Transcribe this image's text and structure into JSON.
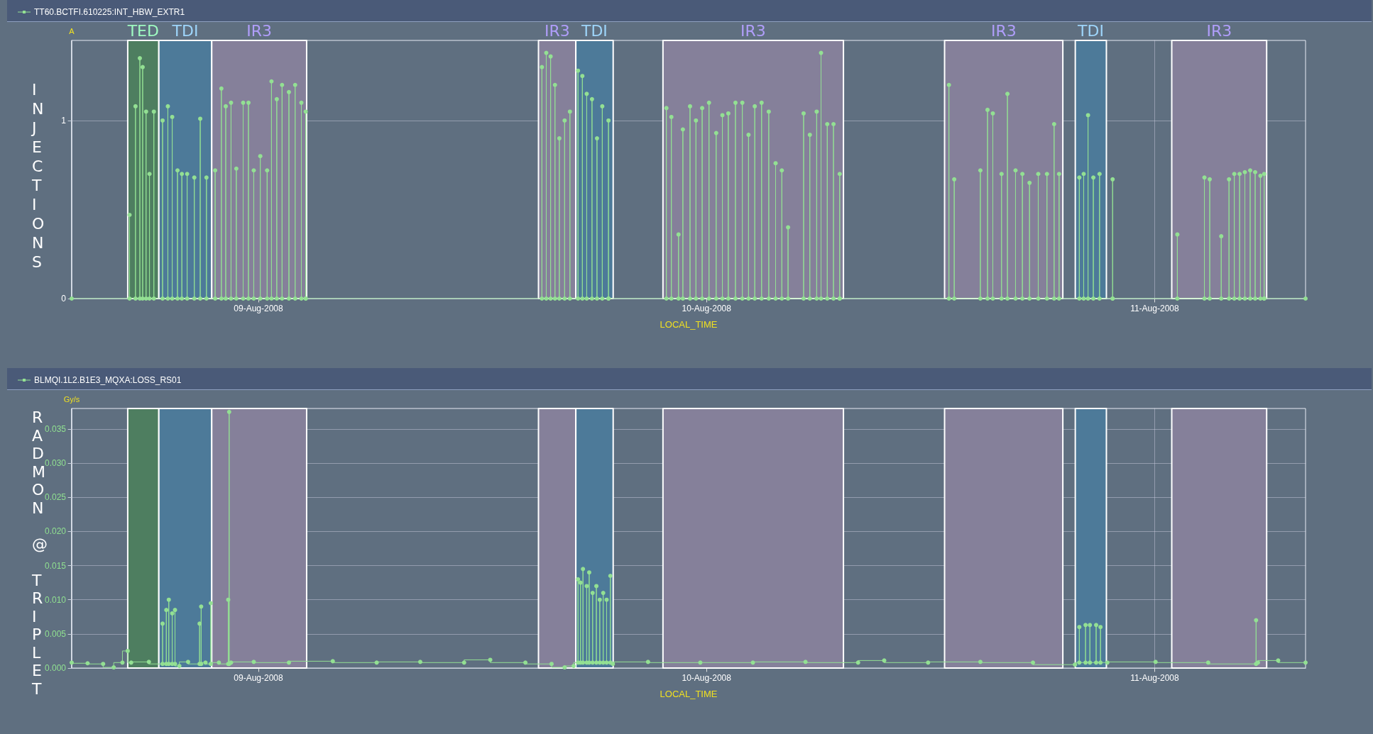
{
  "chart_data": [
    {
      "type": "step",
      "title": "INJECTIONS",
      "ylabel": "A",
      "xlabel": "LOCAL_TIME",
      "legend": "top left",
      "grid": true,
      "marker": "circle",
      "line_style": "solid",
      "xlim": [
        "2008-08-08T14:00",
        "2008-08-11T08:05"
      ],
      "xticks": [
        {
          "value": "2008-08-09",
          "label": "09-Aug-2008"
        },
        {
          "value": "2008-08-10",
          "label": "10-Aug-2008"
        },
        {
          "value": "2008-08-11",
          "label": "11-Aug-2008"
        }
      ],
      "ylim": [
        0,
        1.45
      ],
      "yticks": [
        0,
        1
      ],
      "bands": [
        {
          "axis": "x",
          "from": "2008-08-08T17:00",
          "to": "2008-08-08T18:40",
          "label": "TED",
          "color": "#4e7e60"
        },
        {
          "axis": "x",
          "from": "2008-08-08T18:40",
          "to": "2008-08-08T21:30",
          "label": "TDI",
          "color": "#4d7a99"
        },
        {
          "axis": "x",
          "from": "2008-08-08T21:30",
          "to": "2008-08-09T02:35",
          "label": "IR3",
          "color": "#85809a"
        },
        {
          "axis": "x",
          "from": "2008-08-09T15:00",
          "to": "2008-08-09T17:00",
          "label": "IR3",
          "color": "#85809a"
        },
        {
          "axis": "x",
          "from": "2008-08-09T17:00",
          "to": "2008-08-09T19:00",
          "label": "TDI",
          "color": "#4d7a99"
        },
        {
          "axis": "x",
          "from": "2008-08-09T21:40",
          "to": "2008-08-10T07:20",
          "label": "IR3",
          "color": "#85809a"
        },
        {
          "axis": "x",
          "from": "2008-08-10T12:45",
          "to": "2008-08-10T19:05",
          "label": "IR3",
          "color": "#85809a"
        },
        {
          "axis": "x",
          "from": "2008-08-10T19:45",
          "to": "2008-08-10T21:25",
          "label": "TDI",
          "color": "#4d7a99"
        },
        {
          "axis": "x",
          "from": "2008-08-11T00:55",
          "to": "2008-08-11T06:00",
          "label": "IR3",
          "color": "#85809a"
        }
      ],
      "series": [
        {
          "name": "TT60.BCTFI.610225:INT_HBW_EXTR1",
          "color": "#93e093",
          "x": [
            "2008-08-08T14:00",
            "2008-08-08T17:06",
            "2008-08-08T17:06",
            "2008-08-08T17:25",
            "2008-08-08T17:25",
            "2008-08-08T17:39",
            "2008-08-08T17:39",
            "2008-08-08T17:48",
            "2008-08-08T17:48",
            "2008-08-08T17:59",
            "2008-08-08T17:59",
            "2008-08-08T18:10",
            "2008-08-08T18:10",
            "2008-08-08T18:24",
            "2008-08-08T18:24",
            "2008-08-08T18:52",
            "2008-08-08T18:52",
            "2008-08-08T19:09",
            "2008-08-08T19:09",
            "2008-08-08T19:23",
            "2008-08-08T19:23",
            "2008-08-08T19:40",
            "2008-08-08T19:40",
            "2008-08-08T19:54",
            "2008-08-08T19:54",
            "2008-08-08T20:11",
            "2008-08-08T20:11",
            "2008-08-08T20:34",
            "2008-08-08T20:34",
            "2008-08-08T20:53",
            "2008-08-08T20:53",
            "2008-08-08T21:13",
            "2008-08-08T21:13",
            "2008-08-08T21:41",
            "2008-08-08T21:41",
            "2008-08-08T22:01",
            "2008-08-08T22:01",
            "2008-08-08T22:15",
            "2008-08-08T22:15",
            "2008-08-08T22:32",
            "2008-08-08T22:32",
            "2008-08-08T22:49",
            "2008-08-08T22:49",
            "2008-08-08T23:11",
            "2008-08-08T23:11",
            "2008-08-08T23:28",
            "2008-08-08T23:28",
            "2008-08-08T23:45",
            "2008-08-08T23:45",
            "2008-08-09T00:06",
            "2008-08-09T00:06",
            "2008-08-09T00:28",
            "2008-08-09T00:28",
            "2008-08-09T00:42",
            "2008-08-09T00:42",
            "2008-08-09T00:59",
            "2008-08-09T00:59",
            "2008-08-09T01:16",
            "2008-08-09T01:16",
            "2008-08-09T01:38",
            "2008-08-09T01:38",
            "2008-08-09T01:58",
            "2008-08-09T01:58",
            "2008-08-09T02:18",
            "2008-08-09T02:18",
            "2008-08-09T02:32",
            "2008-08-09T02:32",
            "2008-08-09T02:32",
            "2008-08-09T15:11",
            "2008-08-09T15:11",
            "2008-08-09T15:25",
            "2008-08-09T15:25",
            "2008-08-09T15:39",
            "2008-08-09T15:39",
            "2008-08-09T15:53",
            "2008-08-09T15:53",
            "2008-08-09T16:07",
            "2008-08-09T16:07",
            "2008-08-09T16:24",
            "2008-08-09T16:24",
            "2008-08-09T16:41",
            "2008-08-09T16:41",
            "2008-08-09T17:07",
            "2008-08-09T17:07",
            "2008-08-09T17:21",
            "2008-08-09T17:21",
            "2008-08-09T17:35",
            "2008-08-09T17:35",
            "2008-08-09T17:52",
            "2008-08-09T17:52",
            "2008-08-09T18:08",
            "2008-08-09T18:08",
            "2008-08-09T18:25",
            "2008-08-09T18:25",
            "2008-08-09T18:45",
            "2008-08-09T18:45",
            "2008-08-09T18:45",
            "2008-08-09T21:51",
            "2008-08-09T21:51",
            "2008-08-09T22:07",
            "2008-08-09T22:07",
            "2008-08-09T22:30",
            "2008-08-09T22:30",
            "2008-08-09T22:44",
            "2008-08-09T22:44",
            "2008-08-09T23:07",
            "2008-08-09T23:07",
            "2008-08-09T23:26",
            "2008-08-09T23:26",
            "2008-08-09T23:46",
            "2008-08-09T23:46",
            "2008-08-10T00:08",
            "2008-08-10T00:08",
            "2008-08-10T00:31",
            "2008-08-10T00:31",
            "2008-08-10T00:51",
            "2008-08-10T00:51",
            "2008-08-10T01:10",
            "2008-08-10T01:10",
            "2008-08-10T01:33",
            "2008-08-10T01:33",
            "2008-08-10T01:55",
            "2008-08-10T01:55",
            "2008-08-10T02:15",
            "2008-08-10T02:15",
            "2008-08-10T02:35",
            "2008-08-10T02:35",
            "2008-08-10T02:57",
            "2008-08-10T02:57",
            "2008-08-10T03:20",
            "2008-08-10T03:20",
            "2008-08-10T03:42",
            "2008-08-10T03:42",
            "2008-08-10T04:02",
            "2008-08-10T04:02",
            "2008-08-10T04:22",
            "2008-08-10T04:22",
            "2008-08-10T05:12",
            "2008-08-10T05:12",
            "2008-08-10T05:32",
            "2008-08-10T05:32",
            "2008-08-10T05:54",
            "2008-08-10T05:54",
            "2008-08-10T06:08",
            "2008-08-10T06:08",
            "2008-08-10T06:28",
            "2008-08-10T06:28",
            "2008-08-10T06:48",
            "2008-08-10T06:48",
            "2008-08-10T07:08",
            "2008-08-10T07:08",
            "2008-08-10T07:08",
            "2008-08-10T12:59",
            "2008-08-10T12:59",
            "2008-08-10T13:16",
            "2008-08-10T13:16",
            "2008-08-10T14:40",
            "2008-08-10T14:40",
            "2008-08-10T15:03",
            "2008-08-10T15:03",
            "2008-08-10T15:20",
            "2008-08-10T15:20",
            "2008-08-10T15:48",
            "2008-08-10T15:48",
            "2008-08-10T16:07",
            "2008-08-10T16:07",
            "2008-08-10T16:33",
            "2008-08-10T16:33",
            "2008-08-10T16:55",
            "2008-08-10T16:55",
            "2008-08-10T17:18",
            "2008-08-10T17:18",
            "2008-08-10T17:46",
            "2008-08-10T17:46",
            "2008-08-10T18:14",
            "2008-08-10T18:14",
            "2008-08-10T18:37",
            "2008-08-10T18:37",
            "2008-08-10T18:53",
            "2008-08-10T18:53",
            "2008-08-10T19:58",
            "2008-08-10T19:58",
            "2008-08-10T20:12",
            "2008-08-10T20:12",
            "2008-08-10T20:26",
            "2008-08-10T20:26",
            "2008-08-10T20:43",
            "2008-08-10T20:43",
            "2008-08-10T21:03",
            "2008-08-10T21:03",
            "2008-08-10T21:45",
            "2008-08-10T21:45",
            "2008-08-10T21:45",
            "2008-08-11T01:13",
            "2008-08-11T01:13",
            "2008-08-11T02:40",
            "2008-08-11T02:40",
            "2008-08-11T02:57",
            "2008-08-11T02:57",
            "2008-08-11T03:34",
            "2008-08-11T03:34",
            "2008-08-11T03:59",
            "2008-08-11T03:59",
            "2008-08-11T04:16",
            "2008-08-11T04:16",
            "2008-08-11T04:33",
            "2008-08-11T04:33",
            "2008-08-11T04:50",
            "2008-08-11T04:50",
            "2008-08-11T05:07",
            "2008-08-11T05:07",
            "2008-08-11T05:23",
            "2008-08-11T05:23",
            "2008-08-11T05:40",
            "2008-08-11T05:40",
            "2008-08-11T05:52",
            "2008-08-11T05:52",
            "2008-08-11T05:52",
            "2008-08-11T08:05"
          ],
          "values": [
            0,
            0,
            0.47,
            0,
            1.08,
            0,
            1.35,
            0,
            1.3,
            0,
            1.05,
            0,
            0.7,
            0,
            1.05,
            0,
            1.0,
            0,
            1.08,
            0,
            1.02,
            0,
            0.72,
            0,
            0.7,
            0,
            0.7,
            0,
            0.68,
            0,
            1.01,
            0,
            0.68,
            0,
            0.72,
            0,
            1.18,
            0,
            1.08,
            0,
            1.1,
            0,
            0.73,
            0,
            1.1,
            0,
            1.1,
            0,
            0.72,
            0,
            0.8,
            0,
            0.72,
            0,
            1.22,
            0,
            1.12,
            0,
            1.2,
            0,
            1.16,
            0,
            1.2,
            0,
            1.1,
            0,
            1.05,
            0,
            0,
            1.3,
            0,
            1.38,
            0,
            1.36,
            0,
            1.2,
            0,
            0.9,
            0,
            1.0,
            0,
            1.05,
            0,
            1.28,
            0,
            1.25,
            0,
            1.15,
            0,
            1.12,
            0,
            0.9,
            0,
            1.08,
            0,
            1.0,
            0,
            0,
            1.07,
            0,
            1.02,
            0,
            0.36,
            0,
            0.95,
            0,
            1.08,
            0,
            1.0,
            0,
            1.07,
            0,
            1.1,
            0,
            0.93,
            0,
            1.03,
            0,
            1.04,
            0,
            1.1,
            0,
            1.1,
            0,
            0.92,
            0,
            1.08,
            0,
            1.1,
            0,
            1.05,
            0,
            0.76,
            0,
            0.72,
            0,
            0.4,
            0,
            1.04,
            0,
            0.92,
            0,
            1.05,
            0,
            1.38,
            0,
            0.98,
            0,
            0.98,
            0,
            0.7,
            0,
            0,
            1.2,
            0,
            0.67,
            0,
            0.72,
            0,
            1.06,
            0,
            1.04,
            0,
            0.7,
            0,
            1.15,
            0,
            0.72,
            0,
            0.7,
            0,
            0.65,
            0,
            0.7,
            0,
            0.7,
            0,
            0.98,
            0,
            0.7,
            0,
            0.68,
            0,
            0.7,
            0,
            1.03,
            0,
            0.68,
            0,
            0.7,
            0,
            0.67,
            0,
            0,
            0.36,
            0,
            0.68,
            0,
            0.67,
            0,
            0.35,
            0,
            0.67,
            0,
            0.7,
            0,
            0.7,
            0,
            0.71,
            0,
            0.72,
            0,
            0.71,
            0,
            0.69,
            0,
            0.7,
            0,
            0
          ]
        }
      ]
    },
    {
      "type": "step",
      "title": "RADMON @ TRIPLET",
      "ylabel": "Gy/s",
      "xlabel": "LOCAL_TIME",
      "legend": "top left",
      "grid": true,
      "marker": "circle",
      "line_style": "solid",
      "xlim": [
        "2008-08-08T14:00",
        "2008-08-11T08:05"
      ],
      "xticks": [
        {
          "value": "2008-08-09",
          "label": "09-Aug-2008"
        },
        {
          "value": "2008-08-10",
          "label": "10-Aug-2008"
        },
        {
          "value": "2008-08-11",
          "label": "11-Aug-2008"
        }
      ],
      "ylim": [
        0,
        0.038
      ],
      "yticks": [
        {
          "value": 0,
          "label": "0.000"
        },
        {
          "value": 0.005,
          "label": "0.005"
        },
        {
          "value": 0.01,
          "label": "0.010"
        },
        {
          "value": 0.015,
          "label": "0.015"
        },
        {
          "value": 0.02,
          "label": "0.020"
        },
        {
          "value": 0.025,
          "label": "0.025"
        },
        {
          "value": 0.03,
          "label": "0.030"
        },
        {
          "value": 0.035,
          "label": "0.035"
        }
      ],
      "bands": [
        {
          "axis": "x",
          "from": "2008-08-08T17:00",
          "to": "2008-08-08T18:40",
          "color": "#4e7e60"
        },
        {
          "axis": "x",
          "from": "2008-08-08T18:40",
          "to": "2008-08-08T21:30",
          "color": "#4d7a99"
        },
        {
          "axis": "x",
          "from": "2008-08-08T21:30",
          "to": "2008-08-09T02:35",
          "color": "#85809a"
        },
        {
          "axis": "x",
          "from": "2008-08-09T15:00",
          "to": "2008-08-09T17:00",
          "color": "#85809a"
        },
        {
          "axis": "x",
          "from": "2008-08-09T17:00",
          "to": "2008-08-09T19:00",
          "color": "#4d7a99"
        },
        {
          "axis": "x",
          "from": "2008-08-09T21:40",
          "to": "2008-08-10T07:20",
          "color": "#85809a"
        },
        {
          "axis": "x",
          "from": "2008-08-10T12:45",
          "to": "2008-08-10T19:05",
          "color": "#85809a"
        },
        {
          "axis": "x",
          "from": "2008-08-10T19:45",
          "to": "2008-08-10T21:25",
          "color": "#4d7a99"
        },
        {
          "axis": "x",
          "from": "2008-08-11T00:55",
          "to": "2008-08-11T06:00",
          "color": "#85809a"
        }
      ],
      "series": [
        {
          "name": "BLMQI.1L2.B1E3_MQXA:LOSS_RS01",
          "color": "#93e093",
          "x": [
            "2008-08-08T14:00",
            "2008-08-08T14:51",
            "2008-08-08T15:41",
            "2008-08-08T16:15",
            "2008-08-08T16:43",
            "2008-08-08T17:00",
            "2008-08-08T17:11",
            "2008-08-08T18:08",
            "2008-08-08T18:52",
            "2008-08-08T18:52",
            "2008-08-08T19:04",
            "2008-08-08T19:04",
            "2008-08-08T19:12",
            "2008-08-08T19:12",
            "2008-08-08T19:23",
            "2008-08-08T19:23",
            "2008-08-08T19:32",
            "2008-08-08T19:32",
            "2008-08-08T19:46",
            "2008-08-08T20:14",
            "2008-08-08T20:51",
            "2008-08-08T20:51",
            "2008-08-08T20:56",
            "2008-08-08T20:56",
            "2008-08-08T21:10",
            "2008-08-08T21:27",
            "2008-08-08T21:27",
            "2008-08-08T21:53",
            "2008-08-08T22:23",
            "2008-08-08T22:23",
            "2008-08-08T22:26",
            "2008-08-08T22:26",
            "2008-08-08T22:32",
            "2008-08-08T23:45",
            "2008-08-09T01:38",
            "2008-08-09T03:59",
            "2008-08-09T06:20",
            "2008-08-09T08:40",
            "2008-08-09T11:01",
            "2008-08-09T12:25",
            "2008-08-09T14:18",
            "2008-08-09T15:42",
            "2008-08-09T16:24",
            "2008-08-09T16:53",
            "2008-08-09T17:07",
            "2008-08-09T17:07",
            "2008-08-09T17:15",
            "2008-08-09T17:15",
            "2008-08-09T17:23",
            "2008-08-09T17:23",
            "2008-08-09T17:35",
            "2008-08-09T17:35",
            "2008-08-09T17:43",
            "2008-08-09T17:43",
            "2008-08-09T17:54",
            "2008-08-09T17:54",
            "2008-08-09T18:06",
            "2008-08-09T18:06",
            "2008-08-09T18:17",
            "2008-08-09T18:17",
            "2008-08-09T18:28",
            "2008-08-09T18:28",
            "2008-08-09T18:39",
            "2008-08-09T18:39",
            "2008-08-09T18:51",
            "2008-08-09T18:51",
            "2008-08-09T18:59",
            "2008-08-09T20:52",
            "2008-08-09T23:40",
            "2008-08-10T02:29",
            "2008-08-10T05:18",
            "2008-08-10T08:07",
            "2008-08-10T09:31",
            "2008-08-10T11:52",
            "2008-08-10T14:40",
            "2008-08-10T17:29",
            "2008-08-10T19:44",
            "2008-08-10T19:58",
            "2008-08-10T19:58",
            "2008-08-10T20:18",
            "2008-08-10T20:18",
            "2008-08-10T20:32",
            "2008-08-10T20:32",
            "2008-08-10T20:52",
            "2008-08-10T20:52",
            "2008-08-10T21:06",
            "2008-08-10T21:06",
            "2008-08-10T21:28",
            "2008-08-11T00:03",
            "2008-08-11T02:52",
            "2008-08-11T05:26",
            "2008-08-11T05:26",
            "2008-08-11T05:32",
            "2008-08-11T06:37",
            "2008-08-11T08:05"
          ],
          "values": [
            0.0008,
            0.0007,
            0.0006,
            0.0001,
            0.0008,
            0.0025,
            0.0008,
            0.0009,
            0.0006,
            0.0065,
            0.0006,
            0.0085,
            0.0006,
            0.01,
            0.0006,
            0.008,
            0.0006,
            0.0085,
            0.0003,
            0.0009,
            0.0006,
            0.0065,
            0.0006,
            0.009,
            0.0008,
            0.0006,
            0.0095,
            0.0008,
            0.0006,
            0.01,
            0.0006,
            0.0375,
            0.0008,
            0.0009,
            0.0008,
            0.001,
            0.0008,
            0.0009,
            0.0008,
            0.0012,
            0.0008,
            0.0006,
            0.0001,
            0.0003,
            0.0008,
            0.013,
            0.0008,
            0.0125,
            0.0008,
            0.0145,
            0.0008,
            0.012,
            0.0008,
            0.014,
            0.0008,
            0.011,
            0.0008,
            0.012,
            0.0008,
            0.01,
            0.0008,
            0.011,
            0.0008,
            0.01,
            0.0008,
            0.0135,
            0.0006,
            0.0009,
            0.0008,
            0.0008,
            0.0009,
            0.0008,
            0.0011,
            0.0008,
            0.0009,
            0.0008,
            0.0005,
            0.0008,
            0.006,
            0.0008,
            0.0063,
            0.0008,
            0.0063,
            0.0008,
            0.0063,
            0.0008,
            0.006,
            0.0008,
            0.0009,
            0.0008,
            0.0006,
            0.007,
            0.0008,
            0.0011,
            0.0008
          ]
        }
      ]
    }
  ]
}
